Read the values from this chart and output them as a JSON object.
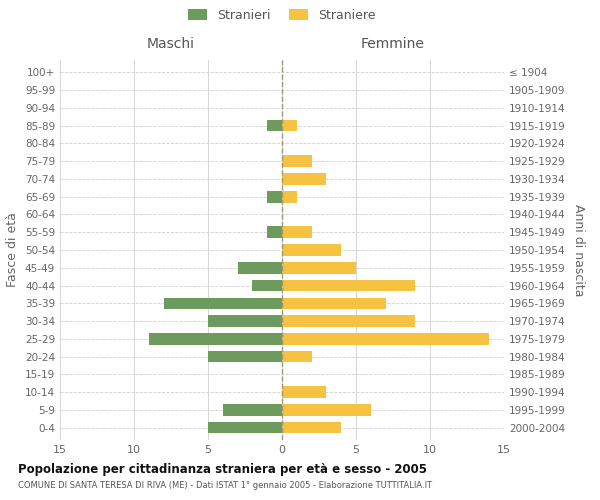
{
  "age_groups": [
    "0-4",
    "5-9",
    "10-14",
    "15-19",
    "20-24",
    "25-29",
    "30-34",
    "35-39",
    "40-44",
    "45-49",
    "50-54",
    "55-59",
    "60-64",
    "65-69",
    "70-74",
    "75-79",
    "80-84",
    "85-89",
    "90-94",
    "95-99",
    "100+"
  ],
  "birth_years": [
    "2000-2004",
    "1995-1999",
    "1990-1994",
    "1985-1989",
    "1980-1984",
    "1975-1979",
    "1970-1974",
    "1965-1969",
    "1960-1964",
    "1955-1959",
    "1950-1954",
    "1945-1949",
    "1940-1944",
    "1935-1939",
    "1930-1934",
    "1925-1929",
    "1920-1924",
    "1915-1919",
    "1910-1914",
    "1905-1909",
    "≤ 1904"
  ],
  "males": [
    5,
    4,
    0,
    0,
    5,
    9,
    5,
    8,
    2,
    3,
    0,
    1,
    0,
    1,
    0,
    0,
    0,
    1,
    0,
    0,
    0
  ],
  "females": [
    4,
    6,
    3,
    0,
    2,
    14,
    9,
    7,
    9,
    5,
    4,
    2,
    0,
    1,
    3,
    2,
    0,
    1,
    0,
    0,
    0
  ],
  "male_color": "#6d9b5e",
  "female_color": "#f5c242",
  "grid_color": "#d0d0d0",
  "center_line_color": "#999977",
  "title": "Popolazione per cittadinanza straniera per età e sesso - 2005",
  "subtitle": "COMUNE DI SANTA TERESA DI RIVA (ME) - Dati ISTAT 1° gennaio 2005 - Elaborazione TUTTITALIA.IT",
  "xlabel_left": "Maschi",
  "xlabel_right": "Femmine",
  "ylabel_left": "Fasce di età",
  "ylabel_right": "Anni di nascita",
  "legend_male": "Stranieri",
  "legend_female": "Straniere",
  "xlim": 15,
  "background_color": "#ffffff"
}
